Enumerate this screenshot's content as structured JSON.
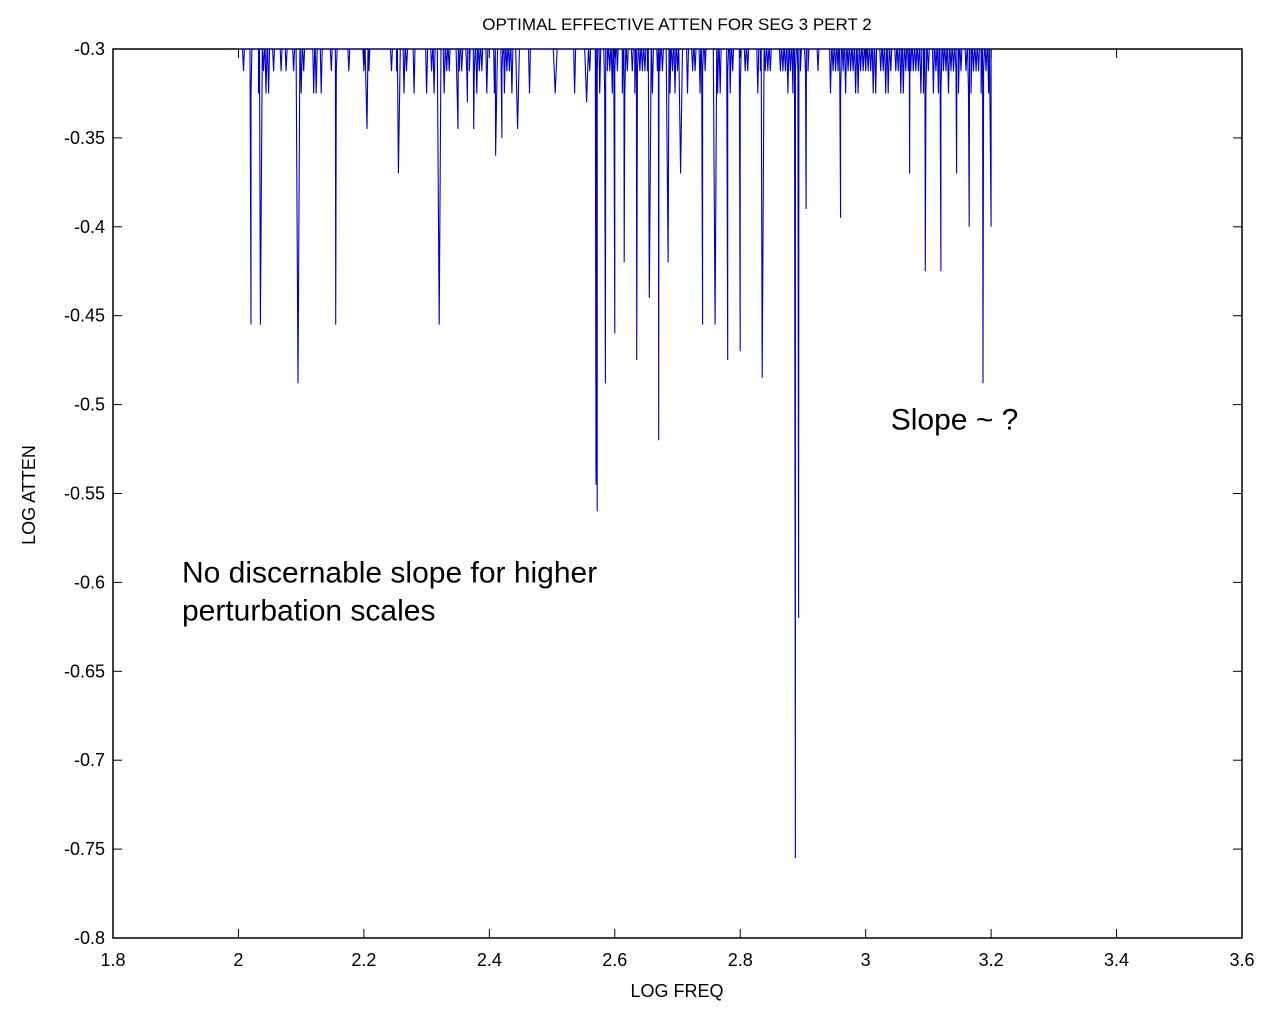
{
  "chart_data": {
    "type": "line",
    "title": "OPTIMAL EFFECTIVE ATTEN FOR SEG 3 PERT 2",
    "xlabel": "LOG FREQ",
    "ylabel": "LOG ATTEN",
    "xlim": [
      1.8,
      3.6
    ],
    "ylim": [
      -0.8,
      -0.3
    ],
    "xticks": [
      1.8,
      2,
      2.2,
      2.4,
      2.6,
      2.8,
      3,
      3.2,
      3.4,
      3.6
    ],
    "xtick_labels": [
      "1.8",
      "2",
      "2.2",
      "2.4",
      "2.6",
      "2.8",
      "3",
      "3.2",
      "3.4",
      "3.6"
    ],
    "yticks": [
      -0.3,
      -0.35,
      -0.4,
      -0.45,
      -0.5,
      -0.55,
      -0.6,
      -0.65,
      -0.7,
      -0.75,
      -0.8
    ],
    "ytick_labels": [
      "-0.3",
      "-0.35",
      "-0.4",
      "-0.45",
      "-0.5",
      "-0.55",
      "-0.6",
      "-0.65",
      "-0.7",
      "-0.75",
      "-0.8"
    ],
    "grid": false,
    "series": [
      {
        "color": "#0000cc",
        "x_range": [
          2.0,
          3.2
        ],
        "baseline": -0.3,
        "dips": [
          [
            2.02,
            -0.455
          ],
          [
            2.035,
            -0.455
          ],
          [
            2.095,
            -0.488
          ],
          [
            2.155,
            -0.455
          ],
          [
            2.205,
            -0.345
          ],
          [
            2.255,
            -0.37
          ],
          [
            2.32,
            -0.455
          ],
          [
            2.35,
            -0.345
          ],
          [
            2.365,
            -0.33
          ],
          [
            2.375,
            -0.345
          ],
          [
            2.41,
            -0.36
          ],
          [
            2.42,
            -0.35
          ],
          [
            2.445,
            -0.345
          ],
          [
            2.505,
            -0.325
          ],
          [
            2.555,
            -0.33
          ],
          [
            2.57,
            -0.545
          ],
          [
            2.572,
            -0.56
          ],
          [
            2.585,
            -0.488
          ],
          [
            2.6,
            -0.46
          ],
          [
            2.615,
            -0.42
          ],
          [
            2.635,
            -0.475
          ],
          [
            2.655,
            -0.44
          ],
          [
            2.67,
            -0.52
          ],
          [
            2.685,
            -0.42
          ],
          [
            2.705,
            -0.37
          ],
          [
            2.74,
            -0.455
          ],
          [
            2.76,
            -0.455
          ],
          [
            2.78,
            -0.475
          ],
          [
            2.8,
            -0.47
          ],
          [
            2.835,
            -0.485
          ],
          [
            2.888,
            -0.755
          ],
          [
            2.893,
            -0.62
          ],
          [
            2.905,
            -0.39
          ],
          [
            2.96,
            -0.395
          ],
          [
            3.07,
            -0.37
          ],
          [
            3.095,
            -0.425
          ],
          [
            3.12,
            -0.425
          ],
          [
            3.145,
            -0.37
          ],
          [
            3.165,
            -0.4
          ],
          [
            3.187,
            -0.488
          ],
          [
            3.2,
            -0.4
          ]
        ]
      }
    ],
    "annotations": [
      {
        "lines": [
          "Slope ~ ?"
        ],
        "x": 3.04,
        "y": -0.514
      },
      {
        "lines": [
          "No discernable slope for higher",
          "perturbation scales"
        ],
        "x": 1.91,
        "y": -0.6
      }
    ]
  }
}
